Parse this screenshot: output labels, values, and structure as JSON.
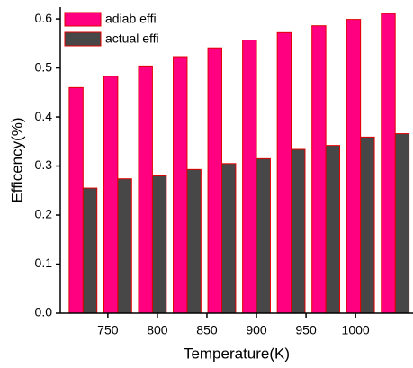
{
  "chart_data": {
    "type": "bar",
    "x_label": "Temperature(K)",
    "y_label": "Efficency(%)",
    "x": [
      725,
      760,
      795,
      830,
      865,
      900,
      935,
      970,
      1005,
      1040
    ],
    "series": [
      {
        "name": "adiab effi",
        "color": "#ff0080",
        "values": [
          0.46,
          0.483,
          0.504,
          0.523,
          0.541,
          0.557,
          0.572,
          0.586,
          0.599,
          0.611
        ]
      },
      {
        "name": "actual effi",
        "color": "#474747",
        "values": [
          0.255,
          0.274,
          0.28,
          0.293,
          0.305,
          0.315,
          0.334,
          0.342,
          0.359,
          0.366
        ]
      }
    ],
    "edge_color": "#e00000",
    "xlim": [
      702,
      1058
    ],
    "xticks": [
      750,
      800,
      850,
      900,
      950,
      1000
    ],
    "ylim": [
      0,
      0.624
    ],
    "yticks": [
      {
        "value": 0,
        "label": "0.0"
      },
      0.1,
      0.2,
      0.3,
      0.4,
      0.5,
      0.6
    ],
    "legend": "top-left"
  }
}
